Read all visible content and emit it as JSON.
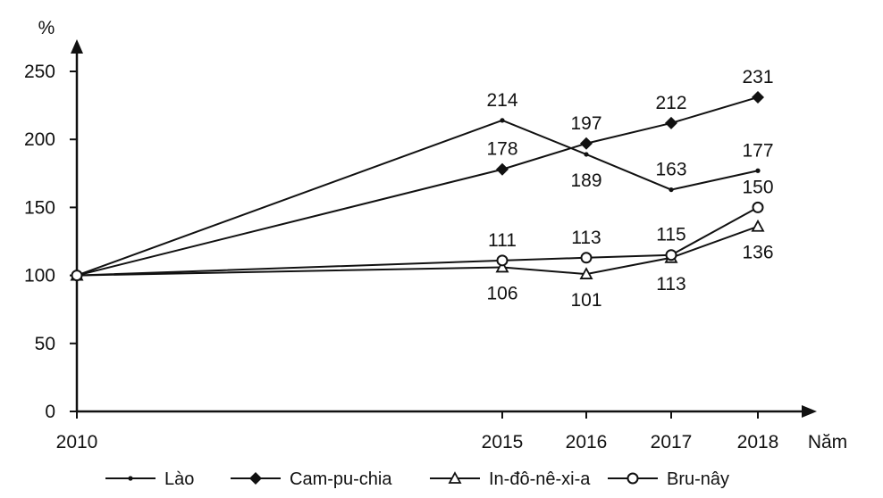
{
  "chart_data": {
    "type": "line",
    "title": "",
    "ylabel": "%",
    "xlabel": "Năm",
    "ylim": [
      0,
      250
    ],
    "yticks": [
      0,
      50,
      100,
      150,
      200,
      250
    ],
    "x": [
      2010,
      2015,
      2016,
      2017,
      2018
    ],
    "x_tick_labels": [
      "2010",
      "2015",
      "2016",
      "2017",
      "2018"
    ],
    "grid": false,
    "legend_position": "bottom",
    "series": [
      {
        "name": "Lào",
        "marker": "dot",
        "values": [
          100,
          214,
          189,
          163,
          177
        ],
        "labels": [
          "",
          "214",
          "189",
          "163",
          "177"
        ],
        "label_side": [
          "none",
          "above",
          "below",
          "above",
          "above"
        ]
      },
      {
        "name": "Cam-pu-chia",
        "marker": "diamond",
        "values": [
          100,
          178,
          197,
          212,
          231
        ],
        "labels": [
          "",
          "178",
          "197",
          "212",
          "231"
        ],
        "label_side": [
          "none",
          "above",
          "above",
          "above",
          "above"
        ]
      },
      {
        "name": "In-đô-nê-xi-a",
        "marker": "triangle",
        "values": [
          100,
          106,
          101,
          113,
          136
        ],
        "labels": [
          "",
          "106",
          "101",
          "113",
          "136"
        ],
        "label_side": [
          "none",
          "below",
          "below",
          "below",
          "below"
        ]
      },
      {
        "name": "Bru-nây",
        "marker": "circle",
        "values": [
          100,
          111,
          113,
          115,
          150
        ],
        "labels": [
          "",
          "111",
          "113",
          "115",
          "150"
        ],
        "label_side": [
          "none",
          "above",
          "above",
          "above",
          "above"
        ]
      }
    ],
    "color": "#111111"
  }
}
